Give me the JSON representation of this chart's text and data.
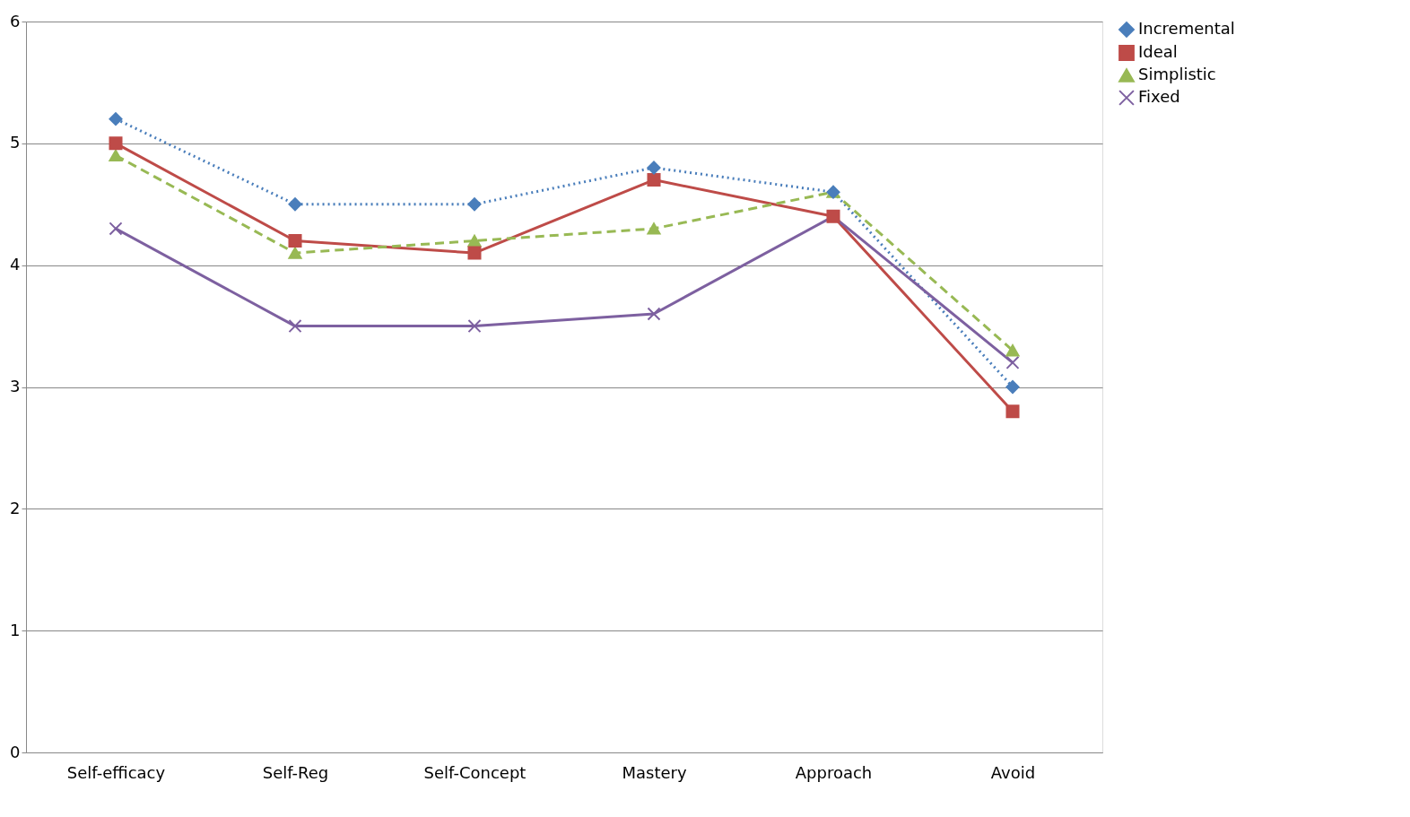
{
  "chart_data": {
    "type": "line",
    "categories": [
      "Self-efficacy",
      "Self-Reg",
      "Self-Concept",
      "Mastery",
      "Approach",
      "Avoid"
    ],
    "ylim": [
      0,
      6
    ],
    "yticks": [
      0,
      1,
      2,
      3,
      4,
      5,
      6
    ],
    "grid": "y",
    "legend": "right",
    "series": [
      {
        "name": "Incremental",
        "color": "#4a7ebb",
        "marker": "diamond",
        "line_style": "dotted",
        "values": [
          5.2,
          4.5,
          4.5,
          4.8,
          4.6,
          3.0
        ]
      },
      {
        "name": "Ideal",
        "color": "#be4b48",
        "marker": "square",
        "line_style": "solid",
        "values": [
          5.0,
          4.2,
          4.1,
          4.7,
          4.4,
          2.8
        ]
      },
      {
        "name": "Simplistic",
        "color": "#98b954",
        "marker": "triangle",
        "line_style": "dashed",
        "values": [
          4.9,
          4.1,
          4.2,
          4.3,
          4.6,
          3.3
        ]
      },
      {
        "name": "Fixed",
        "color": "#7d60a0",
        "marker": "cross",
        "line_style": "solid",
        "values": [
          4.3,
          3.5,
          3.5,
          3.6,
          4.4,
          3.2
        ]
      }
    ]
  }
}
